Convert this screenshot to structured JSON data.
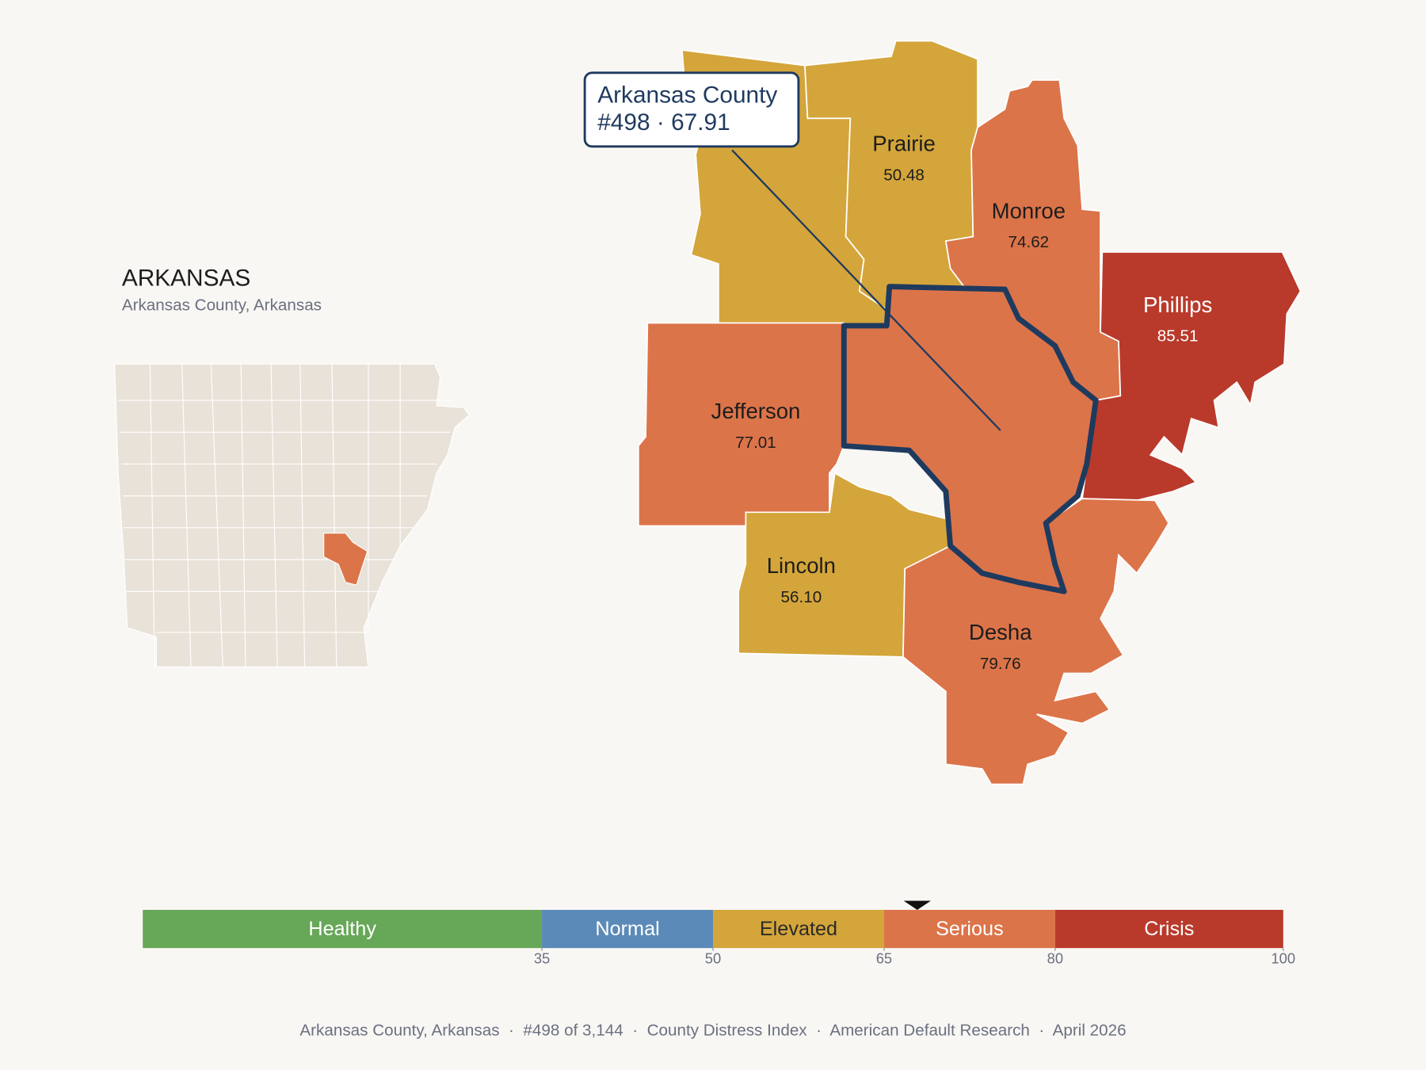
{
  "header": {
    "title": "ARKANSAS",
    "subtitle": "Arkansas County, Arkansas"
  },
  "highlight": {
    "name": "Arkansas County",
    "rank_label": "#498 · 67.91",
    "score": 67.91,
    "color": "#dc7449"
  },
  "counties": [
    {
      "name": "Prairie",
      "value": 50.48,
      "value_label": "50.48",
      "color": "#d4a53a"
    },
    {
      "name": "Monroe",
      "value": 74.62,
      "value_label": "74.62",
      "color": "#dc7449"
    },
    {
      "name": "Phillips",
      "value": 85.51,
      "value_label": "85.51",
      "color": "#b93a2b"
    },
    {
      "name": "Jefferson",
      "value": 77.01,
      "value_label": "77.01",
      "color": "#dc7449"
    },
    {
      "name": "Lincoln",
      "value": 56.1,
      "value_label": "56.10",
      "color": "#d4a53a"
    },
    {
      "name": "Desha",
      "value": 79.76,
      "value_label": "79.76",
      "color": "#dc7449"
    }
  ],
  "scale": {
    "range": [
      0,
      100
    ],
    "ticks": [
      35,
      50,
      65,
      80,
      100
    ],
    "bands": [
      {
        "name": "Healthy",
        "color": "#67a758",
        "text_color": "#ffffff"
      },
      {
        "name": "Normal",
        "color": "#5b8ab8",
        "text_color": "#ffffff"
      },
      {
        "name": "Elevated",
        "color": "#d4a53a",
        "text_color": "#2a2a2a"
      },
      {
        "name": "Serious",
        "color": "#dc7449",
        "text_color": "#ffffff"
      },
      {
        "name": "Crisis",
        "color": "#b93a2b",
        "text_color": "#ffffff"
      }
    ]
  },
  "footer": "Arkansas County, Arkansas  ·  #498 of 3,144  ·  County Distress Index  ·  American Default Research  ·  April 2026"
}
